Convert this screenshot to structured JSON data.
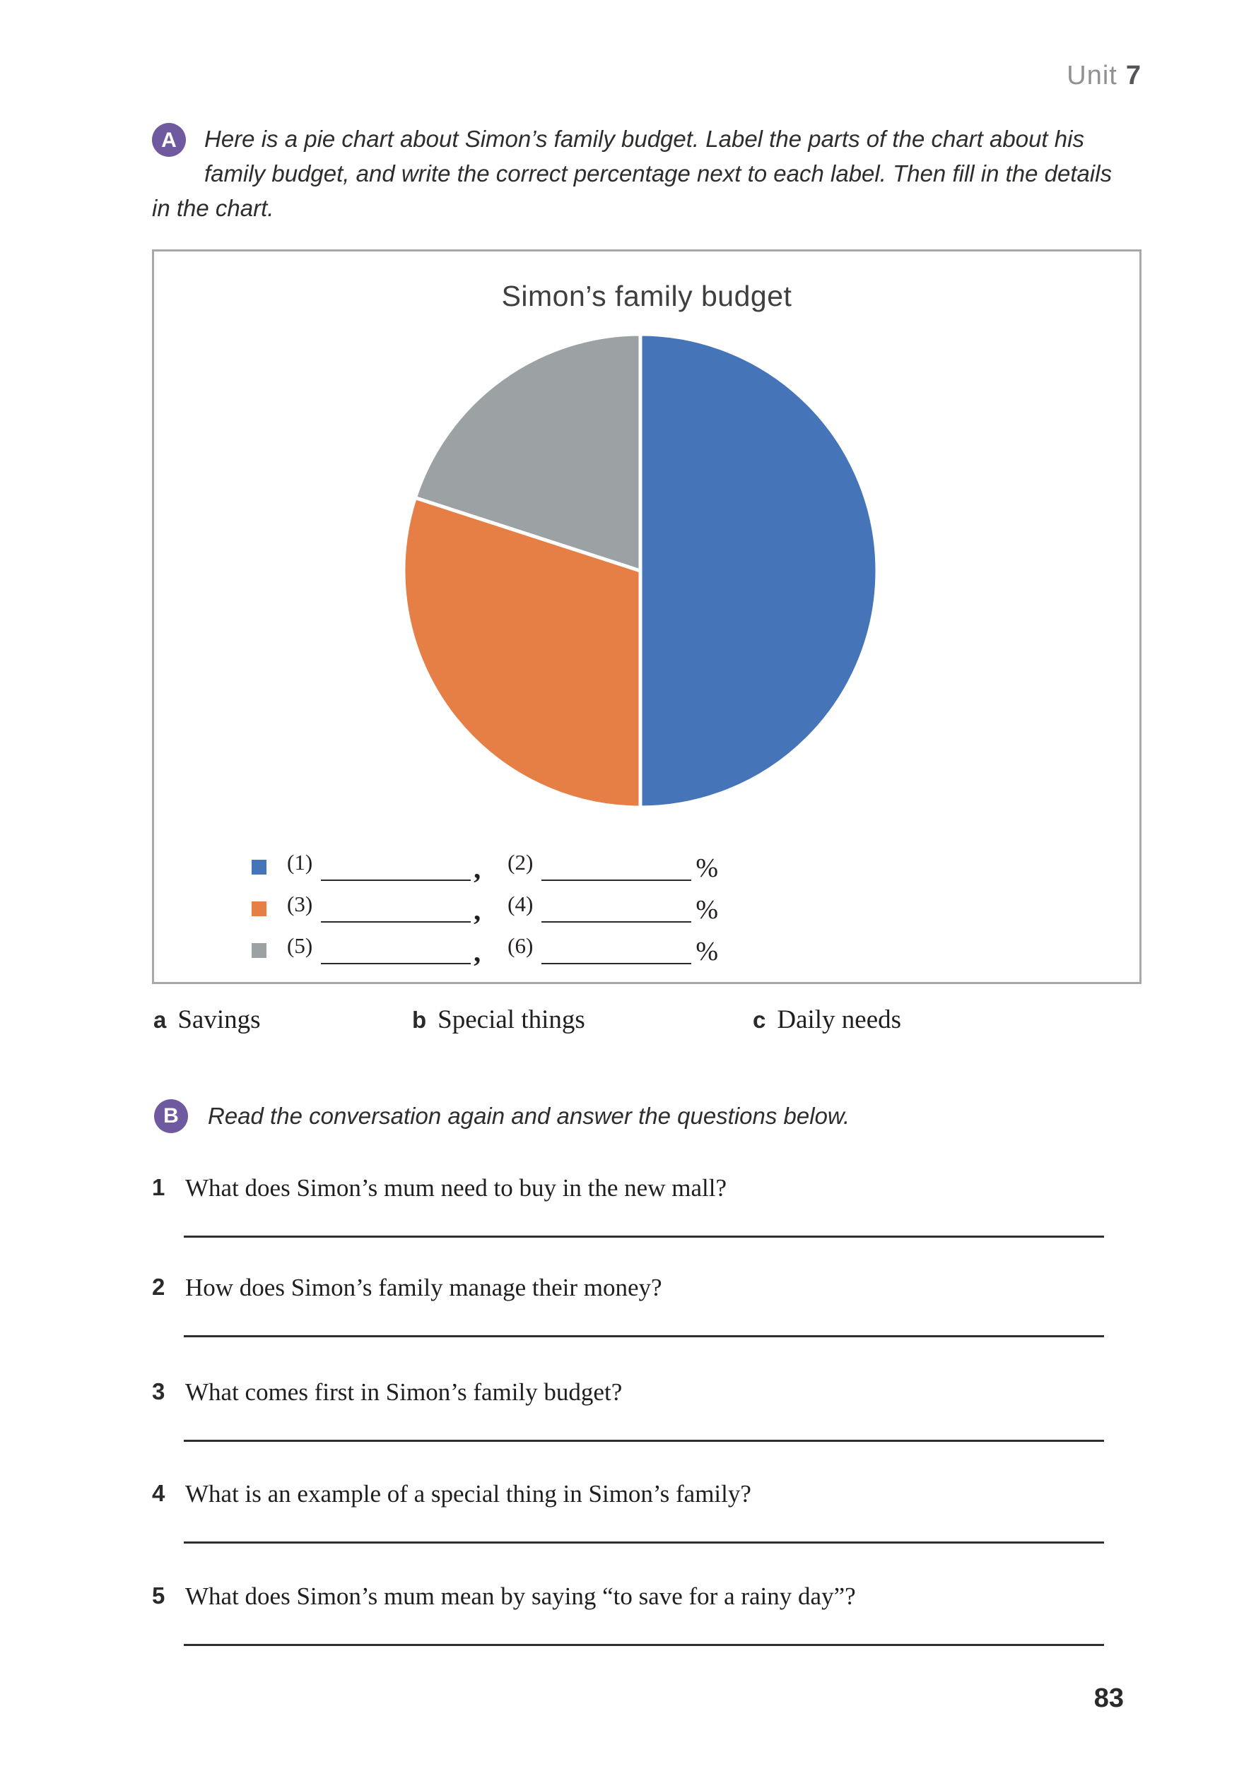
{
  "page": {
    "unit_label": "Unit",
    "unit_number": "7",
    "page_number": "83"
  },
  "section_a": {
    "badge": "A",
    "instructions": "Here is a pie chart about Simon’s family budget. Label the parts of the chart about his family budget, and write the correct percentage next to each label. Then fill in the details in the chart."
  },
  "chart_data": {
    "type": "pie",
    "title": "Simon’s family budget",
    "values": [
      50,
      30,
      20
    ],
    "slices": [
      {
        "label_slot": "(1)",
        "pct_slot": "(2)",
        "value": 50,
        "color": "#4574b9"
      },
      {
        "label_slot": "(3)",
        "pct_slot": "(4)",
        "value": 30,
        "color": "#e57f45"
      },
      {
        "label_slot": "(5)",
        "pct_slot": "(6)",
        "value": 20,
        "color": "#9ca1a4"
      }
    ],
    "legend_separator": ",",
    "legend_suffix": "%",
    "legend_position": "bottom-left",
    "start_angle_deg": -90,
    "direction": "clockwise"
  },
  "options": [
    {
      "letter": "a",
      "text": "Savings"
    },
    {
      "letter": "b",
      "text": "Special things"
    },
    {
      "letter": "c",
      "text": "Daily needs"
    }
  ],
  "section_b": {
    "badge": "B",
    "instructions": "Read the conversation again and answer the questions below."
  },
  "questions": [
    {
      "number": "1",
      "text": "What does Simon’s mum need to buy in the new mall?"
    },
    {
      "number": "2",
      "text": "How does Simon’s family manage their money?"
    },
    {
      "number": "3",
      "text": "What comes first in Simon’s family budget?"
    },
    {
      "number": "4",
      "text": "What is an example of a special thing in Simon’s family?"
    },
    {
      "number": "5",
      "text": "What does Simon’s mum mean by saying “to save for a rainy day”?"
    }
  ]
}
